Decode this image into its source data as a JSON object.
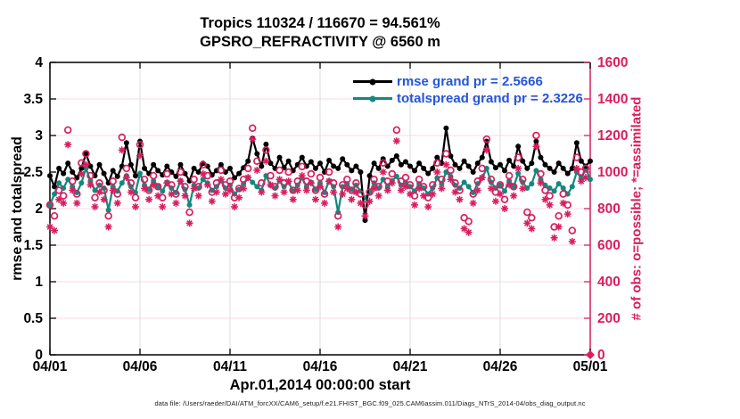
{
  "accent_colors": {
    "pink": "#d91e5f",
    "teal": "#12897f",
    "black": "#000000",
    "legend_text_blue": "#2356d9",
    "grid_horizontal_pink": "#f8d9e2",
    "grid_vertical_gray": "#dcdce0"
  },
  "legend": {
    "entries": [
      {
        "label": "rmse grand pr = 2.5666",
        "color": "#000000"
      },
      {
        "label": "totalspread grand pr = 2.3226",
        "color": "#12897f"
      }
    ]
  },
  "footer": {
    "data_file_line": "data file: /Users/raeder/DAI/ATM_forcXX/CAM6_setup/f.e21.FHIST_BGC.f09_025.CAM6assim.011/Diags_NTrS_2014-04/obs_diag_output.nc"
  },
  "chart_data": {
    "type": "line",
    "title": "Tropics 110324 / 116670 = 94.561%",
    "subtitle": "GPSRO_REFRACTIVITY @ 6560 m",
    "xlabel": "Apr.01,2014 00:00:00 start",
    "ylabel_left": "rmse and totalspread",
    "ylabel_right": "# of obs: o=possible; *=assimilated",
    "ylim_left": [
      0,
      4
    ],
    "ylim_right": [
      0,
      1600
    ],
    "yticks_left": [
      "0",
      "0.5",
      "1",
      "1.5",
      "2",
      "2.5",
      "3",
      "3.5",
      "4"
    ],
    "yticks_right": [
      "0",
      "200",
      "400",
      "600",
      "800",
      "1000",
      "1200",
      "1400",
      "1600"
    ],
    "xtick_labels": [
      "04/01",
      "04/06",
      "04/11",
      "04/16",
      "04/21",
      "04/26",
      "05/01"
    ],
    "xtick_positions": [
      0,
      20,
      40,
      60,
      80,
      100,
      120
    ],
    "n_points": 121,
    "grid": true,
    "values_estimated_from_pixels": true,
    "series": [
      {
        "name": "rmse",
        "axis": "left",
        "color": "#000000",
        "marker": "filled-circle",
        "line": true,
        "grand_pr": 2.5666,
        "values": [
          2.45,
          2.3,
          2.55,
          2.48,
          2.62,
          2.5,
          2.42,
          2.55,
          2.75,
          2.58,
          2.45,
          2.6,
          2.48,
          2.35,
          2.52,
          2.44,
          2.58,
          2.9,
          2.6,
          2.45,
          2.92,
          2.55,
          2.48,
          2.6,
          2.52,
          2.46,
          2.58,
          2.5,
          2.44,
          2.6,
          2.48,
          2.38,
          2.55,
          2.5,
          2.62,
          2.58,
          2.46,
          2.52,
          2.6,
          2.5,
          2.55,
          2.42,
          2.48,
          2.56,
          2.65,
          2.96,
          2.75,
          2.58,
          2.88,
          2.62,
          2.55,
          2.7,
          2.56,
          2.65,
          2.52,
          2.6,
          2.7,
          2.58,
          2.64,
          2.55,
          2.62,
          2.5,
          2.66,
          2.58,
          2.55,
          2.68,
          2.6,
          2.52,
          2.58,
          2.5,
          1.84,
          2.45,
          2.62,
          2.55,
          2.68,
          2.58,
          2.66,
          2.72,
          2.6,
          2.64,
          2.58,
          2.52,
          2.62,
          2.55,
          2.48,
          2.55,
          2.7,
          2.62,
          3.1,
          2.72,
          2.6,
          2.55,
          2.65,
          2.58,
          2.5,
          2.62,
          2.7,
          2.92,
          2.64,
          2.56,
          2.6,
          2.52,
          2.66,
          2.58,
          2.85,
          2.65,
          2.55,
          2.62,
          2.92,
          2.7,
          2.6,
          2.55,
          2.5,
          2.62,
          2.55,
          2.48,
          2.55,
          2.9,
          2.65,
          2.58,
          2.65
        ]
      },
      {
        "name": "totalspread",
        "axis": "left",
        "color": "#12897f",
        "marker": "filled-circle",
        "line": true,
        "grand_pr": 2.3226,
        "values": [
          2.05,
          2.2,
          2.35,
          2.28,
          2.4,
          2.3,
          2.22,
          2.35,
          2.55,
          2.38,
          2.25,
          2.32,
          2.28,
          1.98,
          2.3,
          2.24,
          2.35,
          2.45,
          2.3,
          2.22,
          2.48,
          2.32,
          2.26,
          2.38,
          2.3,
          2.24,
          2.36,
          2.28,
          2.22,
          2.38,
          2.26,
          2.05,
          2.32,
          2.28,
          2.4,
          2.35,
          2.25,
          2.3,
          2.38,
          2.28,
          2.32,
          2.2,
          2.26,
          2.34,
          2.42,
          2.36,
          2.3,
          2.25,
          2.45,
          2.32,
          2.28,
          2.38,
          2.3,
          2.36,
          2.24,
          2.32,
          2.42,
          2.3,
          2.36,
          2.26,
          2.35,
          2.22,
          2.38,
          2.3,
          1.95,
          2.3,
          2.34,
          2.26,
          2.32,
          2.24,
          2.15,
          2.22,
          2.35,
          2.28,
          2.4,
          2.3,
          2.38,
          2.44,
          2.32,
          2.36,
          2.3,
          2.24,
          2.34,
          2.28,
          2.2,
          2.28,
          2.42,
          2.34,
          2.5,
          2.44,
          2.32,
          2.28,
          2.36,
          2.3,
          2.22,
          2.34,
          2.42,
          2.55,
          2.36,
          2.28,
          2.32,
          2.24,
          2.38,
          2.3,
          2.48,
          2.36,
          2.28,
          2.34,
          2.52,
          2.4,
          2.32,
          2.28,
          2.24,
          2.34,
          2.28,
          2.2,
          2.3,
          2.5,
          2.42,
          2.55,
          2.4
        ]
      },
      {
        "name": "possible",
        "axis": "right",
        "color": "#d91e5f",
        "marker": "open-circle",
        "line": false,
        "values": [
          820,
          760,
          900,
          870,
          1230,
          950,
          880,
          1050,
          1100,
          980,
          860,
          940,
          900,
          760,
          950,
          880,
          1190,
          1020,
          940,
          860,
          1150,
          960,
          900,
          980,
          920,
          860,
          990,
          930,
          880,
          1000,
          920,
          780,
          960,
          920,
          1040,
          980,
          890,
          940,
          1010,
          930,
          950,
          860,
          910,
          960,
          1020,
          1240,
          1060,
          940,
          1120,
          980,
          920,
          1010,
          940,
          1000,
          900,
          950,
          1030,
          950,
          990,
          900,
          970,
          880,
          1000,
          940,
          760,
          930,
          960,
          900,
          940,
          880,
          820,
          890,
          960,
          920,
          1050,
          950,
          990,
          1230,
          950,
          970,
          930,
          870,
          960,
          920,
          860,
          930,
          1050,
          960,
          1100,
          1010,
          940,
          900,
          750,
          730,
          880,
          950,
          1020,
          1180,
          960,
          890,
          930,
          850,
          980,
          920,
          1080,
          960,
          780,
          750,
          1200,
          990,
          900,
          870,
          700,
          760,
          880,
          820,
          680,
          1080,
          1000,
          1020,
          0
        ]
      },
      {
        "name": "assimilated",
        "axis": "right",
        "color": "#d91e5f",
        "marker": "asterisk",
        "line": false,
        "values": [
          700,
          680,
          850,
          830,
          1150,
          900,
          830,
          990,
          1040,
          930,
          810,
          890,
          850,
          700,
          900,
          830,
          1120,
          970,
          890,
          810,
          1090,
          910,
          850,
          930,
          870,
          810,
          940,
          880,
          830,
          950,
          870,
          720,
          910,
          870,
          990,
          930,
          840,
          890,
          960,
          880,
          900,
          810,
          860,
          910,
          970,
          1180,
          1010,
          890,
          1060,
          930,
          870,
          960,
          890,
          950,
          850,
          900,
          980,
          900,
          940,
          850,
          920,
          830,
          950,
          890,
          700,
          880,
          910,
          850,
          890,
          830,
          760,
          840,
          910,
          870,
          1000,
          900,
          940,
          1170,
          900,
          920,
          880,
          820,
          910,
          870,
          810,
          880,
          1000,
          910,
          1040,
          960,
          890,
          850,
          690,
          670,
          830,
          900,
          970,
          1120,
          910,
          840,
          880,
          800,
          930,
          870,
          1020,
          910,
          720,
          690,
          1140,
          940,
          850,
          820,
          640,
          700,
          830,
          770,
          620,
          1020,
          950,
          970,
          0
        ]
      }
    ],
    "final_marker": {
      "shape": "diamond",
      "color": "#d91e5f",
      "x_index": 120,
      "value": 0,
      "axis": "right"
    }
  }
}
